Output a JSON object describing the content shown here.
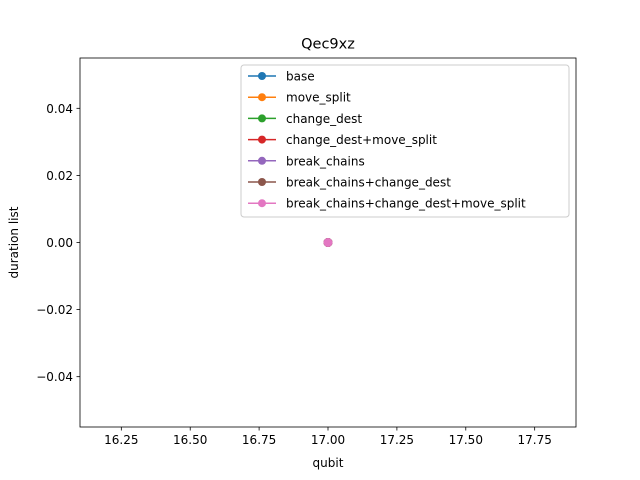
{
  "chart_data": {
    "type": "line",
    "title": "Qec9xz",
    "xlabel": "qubit",
    "ylabel": "duration list",
    "xlim": [
      16.1,
      17.9
    ],
    "ylim": [
      -0.055,
      0.055
    ],
    "xticks": [
      16.25,
      16.5,
      16.75,
      17.0,
      17.25,
      17.5,
      17.75
    ],
    "xtick_labels": [
      "16.25",
      "16.50",
      "16.75",
      "17.00",
      "17.25",
      "17.50",
      "17.75"
    ],
    "yticks": [
      -0.04,
      -0.02,
      0.0,
      0.02,
      0.04
    ],
    "ytick_labels": [
      "−0.04",
      "−0.02",
      "0.00",
      "0.02",
      "0.04"
    ],
    "legend_position": "top-right",
    "grid": false,
    "series": [
      {
        "name": "base",
        "color": "#1f77b4",
        "x": [
          17
        ],
        "y": [
          0
        ]
      },
      {
        "name": "move_split",
        "color": "#ff7f0e",
        "x": [
          17
        ],
        "y": [
          0
        ]
      },
      {
        "name": "change_dest",
        "color": "#2ca02c",
        "x": [
          17
        ],
        "y": [
          0
        ]
      },
      {
        "name": "change_dest+move_split",
        "color": "#d62728",
        "x": [
          17
        ],
        "y": [
          0
        ]
      },
      {
        "name": "break_chains",
        "color": "#9467bd",
        "x": [
          17
        ],
        "y": [
          0
        ]
      },
      {
        "name": "break_chains+change_dest",
        "color": "#8c564b",
        "x": [
          17
        ],
        "y": [
          0
        ]
      },
      {
        "name": "break_chains+change_dest+move_split",
        "color": "#e377c2",
        "x": [
          17
        ],
        "y": [
          0
        ]
      }
    ]
  }
}
